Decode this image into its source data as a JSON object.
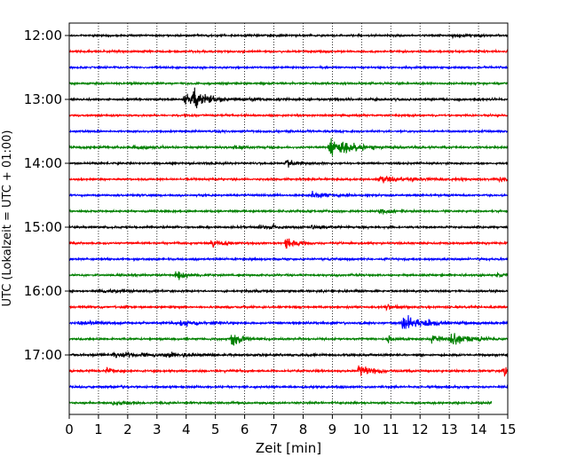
{
  "chart_data": {
    "type": "line",
    "title": "",
    "xlabel": "Zeit  [min]",
    "ylabel": "UTC (Lokalzeit = UTC + 01:00)",
    "xlim": [
      0,
      15
    ],
    "x_ticks": [
      0,
      1,
      2,
      3,
      4,
      5,
      6,
      7,
      8,
      9,
      10,
      11,
      12,
      13,
      14,
      15
    ],
    "row_minutes": 15,
    "y_tick_labels": [
      "12:00",
      "13:00",
      "14:00",
      "15:00",
      "16:00",
      "17:00"
    ],
    "y_tick_rows": [
      0,
      4,
      8,
      12,
      16,
      20
    ],
    "vertical_grid": "dotted",
    "row_colors": [
      "#000000",
      "#ff0000",
      "#0000ff",
      "#008000"
    ],
    "series": [
      {
        "start": "12:00",
        "color": "#000000",
        "noise": 0.9,
        "events": [
          {
            "t": 6.9,
            "amp": 1.4,
            "dur": 0.15
          },
          {
            "t": 13.1,
            "amp": 2.2,
            "dur": 0.4
          }
        ]
      },
      {
        "start": "12:15",
        "color": "#ff0000",
        "noise": 0.9,
        "events": []
      },
      {
        "start": "12:30",
        "color": "#0000ff",
        "noise": 0.9,
        "events": []
      },
      {
        "start": "12:45",
        "color": "#008000",
        "noise": 0.9,
        "events": []
      },
      {
        "start": "13:00",
        "color": "#000000",
        "noise": 1.0,
        "events": [
          {
            "t": 3.9,
            "amp": 4.0,
            "dur": 0.9
          },
          {
            "t": 4.25,
            "amp": 10.0,
            "dur": 0.3
          }
        ]
      },
      {
        "start": "13:15",
        "color": "#ff0000",
        "noise": 0.9,
        "events": []
      },
      {
        "start": "13:30",
        "color": "#0000ff",
        "noise": 0.9,
        "events": []
      },
      {
        "start": "13:45",
        "color": "#008000",
        "noise": 1.0,
        "events": [
          {
            "t": 2.2,
            "amp": 1.5,
            "dur": 0.5
          },
          {
            "t": 5.6,
            "amp": 1.3,
            "dur": 0.3
          },
          {
            "t": 8.9,
            "amp": 12.0,
            "dur": 0.4
          },
          {
            "t": 9.3,
            "amp": 3.0,
            "dur": 0.7
          }
        ]
      },
      {
        "start": "14:00",
        "color": "#000000",
        "noise": 0.9,
        "events": [
          {
            "t": 7.4,
            "amp": 3.5,
            "dur": 0.3
          }
        ]
      },
      {
        "start": "14:15",
        "color": "#ff0000",
        "noise": 0.9,
        "events": [
          {
            "t": 10.6,
            "amp": 2.5,
            "dur": 1.2
          },
          {
            "t": 14.7,
            "amp": 1.5,
            "dur": 0.4
          }
        ]
      },
      {
        "start": "14:30",
        "color": "#0000ff",
        "noise": 0.9,
        "events": [
          {
            "t": 8.3,
            "amp": 2.8,
            "dur": 0.4
          }
        ]
      },
      {
        "start": "14:45",
        "color": "#008000",
        "noise": 0.9,
        "events": [
          {
            "t": 10.6,
            "amp": 2.2,
            "dur": 0.4
          }
        ]
      },
      {
        "start": "15:00",
        "color": "#000000",
        "noise": 0.9,
        "events": [
          {
            "t": 6.5,
            "amp": 2.2,
            "dur": 0.2
          },
          {
            "t": 6.9,
            "amp": 4.0,
            "dur": 0.15
          },
          {
            "t": 8.3,
            "amp": 2.0,
            "dur": 0.5
          }
        ]
      },
      {
        "start": "15:15",
        "color": "#ff0000",
        "noise": 0.9,
        "events": [
          {
            "t": 4.85,
            "amp": 5.0,
            "dur": 0.3
          },
          {
            "t": 7.4,
            "amp": 5.5,
            "dur": 0.3
          }
        ]
      },
      {
        "start": "15:30",
        "color": "#0000ff",
        "noise": 0.9,
        "events": []
      },
      {
        "start": "15:45",
        "color": "#008000",
        "noise": 0.9,
        "events": [
          {
            "t": 3.65,
            "amp": 6.0,
            "dur": 0.3
          },
          {
            "t": 14.6,
            "amp": 1.5,
            "dur": 0.3
          }
        ]
      },
      {
        "start": "16:00",
        "color": "#000000",
        "noise": 0.9,
        "events": [
          {
            "t": 1.0,
            "amp": 1.2,
            "dur": 0.8
          }
        ]
      },
      {
        "start": "16:15",
        "color": "#ff0000",
        "noise": 0.9,
        "events": [
          {
            "t": 10.8,
            "amp": 2.2,
            "dur": 0.3
          }
        ]
      },
      {
        "start": "16:30",
        "color": "#0000ff",
        "noise": 1.0,
        "events": [
          {
            "t": 0.3,
            "amp": 1.5,
            "dur": 0.6
          },
          {
            "t": 3.8,
            "amp": 3.0,
            "dur": 0.5
          },
          {
            "t": 11.4,
            "amp": 6.0,
            "dur": 0.7
          }
        ]
      },
      {
        "start": "16:45",
        "color": "#008000",
        "noise": 0.9,
        "events": [
          {
            "t": 5.55,
            "amp": 8.0,
            "dur": 0.3
          },
          {
            "t": 10.9,
            "amp": 3.5,
            "dur": 0.2
          },
          {
            "t": 12.4,
            "amp": 4.0,
            "dur": 0.3
          },
          {
            "t": 13.0,
            "amp": 5.0,
            "dur": 0.8
          }
        ]
      },
      {
        "start": "17:00",
        "color": "#000000",
        "noise": 1.0,
        "events": [
          {
            "t": 1.5,
            "amp": 2.0,
            "dur": 1.2
          },
          {
            "t": 3.3,
            "amp": 1.5,
            "dur": 0.8
          }
        ]
      },
      {
        "start": "17:15",
        "color": "#ff0000",
        "noise": 0.9,
        "events": [
          {
            "t": 1.25,
            "amp": 4.0,
            "dur": 0.2
          },
          {
            "t": 9.9,
            "amp": 5.0,
            "dur": 0.5
          },
          {
            "t": 14.85,
            "amp": 6.0,
            "dur": 0.3
          }
        ]
      },
      {
        "start": "17:30",
        "color": "#0000ff",
        "noise": 0.9,
        "events": []
      },
      {
        "start": "17:45",
        "color": "#008000",
        "noise": 0.9,
        "end": 14.45,
        "events": [
          {
            "t": 1.5,
            "amp": 1.5,
            "dur": 0.5
          }
        ]
      }
    ]
  }
}
